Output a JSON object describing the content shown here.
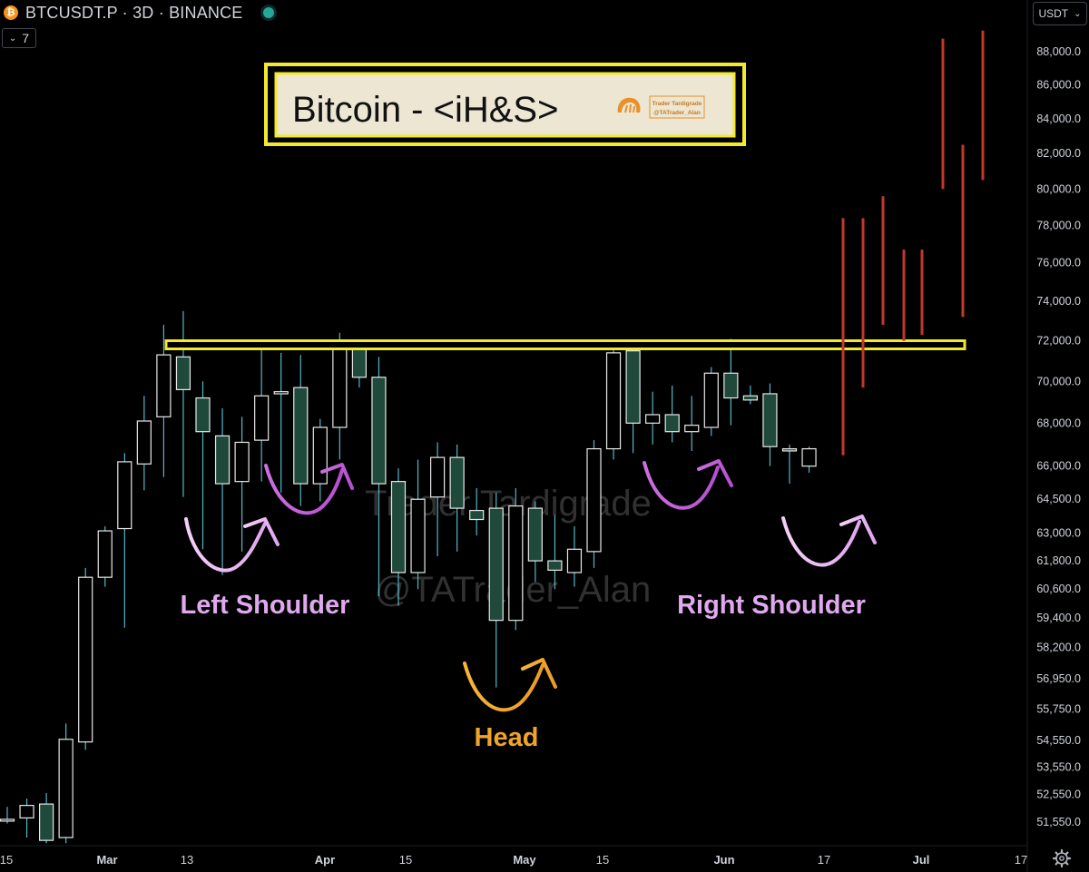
{
  "header": {
    "symbol": "BTCUSDT.P · 3D · BINANCE",
    "indicator_count": "7",
    "currency_button": "USDT"
  },
  "colors": {
    "background": "#000000",
    "bull_fill": "#000000",
    "bull_border": "#e8e8e8",
    "bear_fill": "#1f4a3b",
    "bear_border": "#e8e8e8",
    "wick": "#56b6c8",
    "neckline": "#f2ea2e",
    "projection": "#c0392b",
    "shoulder_label": "#e0a8ef",
    "shoulder_arrow_light": "#e6b3f2",
    "shoulder_arrow_dark": "#c057d6",
    "head": "#f0a52a",
    "title_box_bg": "#ece6d2",
    "title_box_border": "#f2ea2e"
  },
  "chart_data": {
    "type": "candlestick",
    "title": "Bitcoin - <iH&S>",
    "y_axis": {
      "scale": "log",
      "ticks": [
        88000,
        86000,
        84000,
        82000,
        80000,
        78000,
        76000,
        74000,
        72000,
        70000,
        68000,
        66000,
        64500,
        63000,
        61800,
        60600,
        59400,
        58200,
        56950,
        55750,
        54550,
        53550,
        52550,
        51550
      ],
      "tick_labels": [
        "88,000.0",
        "86,000.0",
        "84,000.0",
        "82,000.0",
        "80,000.0",
        "78,000.0",
        "76,000.0",
        "74,000.0",
        "72,000.0",
        "70,000.0",
        "68,000.0",
        "66,000.0",
        "64,500.0",
        "63,000.0",
        "61,800.0",
        "60,600.0",
        "59,400.0",
        "58,200.0",
        "56,950.0",
        "55,750.0",
        "54,550.0",
        "53,550.0",
        "52,550.0",
        "51,550.0"
      ]
    },
    "x_axis": {
      "labels": [
        "15",
        "Mar",
        "13",
        "Apr",
        "15",
        "May",
        "15",
        "Jun",
        "17",
        "Jul",
        "17"
      ],
      "bold": [
        false,
        true,
        false,
        true,
        false,
        true,
        false,
        true,
        false,
        true,
        false
      ]
    },
    "candles": [
      {
        "o": 51600,
        "h": 52100,
        "l": 51500,
        "c": 51650
      },
      {
        "o": 51700,
        "h": 52400,
        "l": 51000,
        "c": 52150
      },
      {
        "o": 52200,
        "h": 52600,
        "l": 50800,
        "c": 50900
      },
      {
        "o": 51000,
        "h": 55200,
        "l": 50800,
        "c": 54600
      },
      {
        "o": 54500,
        "h": 61500,
        "l": 54200,
        "c": 61100
      },
      {
        "o": 61100,
        "h": 63300,
        "l": 60700,
        "c": 63100
      },
      {
        "o": 63200,
        "h": 66600,
        "l": 59000,
        "c": 66200
      },
      {
        "o": 66100,
        "h": 69300,
        "l": 64900,
        "c": 68100
      },
      {
        "o": 68300,
        "h": 72800,
        "l": 65500,
        "c": 71300
      },
      {
        "o": 71200,
        "h": 73500,
        "l": 64600,
        "c": 69600
      },
      {
        "o": 69200,
        "h": 70000,
        "l": 62300,
        "c": 67600
      },
      {
        "o": 67400,
        "h": 68700,
        "l": 61200,
        "c": 65200
      },
      {
        "o": 65300,
        "h": 68300,
        "l": 62200,
        "c": 67100
      },
      {
        "o": 67200,
        "h": 71600,
        "l": 65300,
        "c": 69300
      },
      {
        "o": 69400,
        "h": 71400,
        "l": 64800,
        "c": 69500
      },
      {
        "o": 69700,
        "h": 71300,
        "l": 64200,
        "c": 65200
      },
      {
        "o": 65200,
        "h": 68200,
        "l": 64400,
        "c": 67800
      },
      {
        "o": 67800,
        "h": 72400,
        "l": 66300,
        "c": 71600
      },
      {
        "o": 71600,
        "h": 72000,
        "l": 69700,
        "c": 70200
      },
      {
        "o": 70200,
        "h": 71200,
        "l": 60300,
        "c": 65200
      },
      {
        "o": 65300,
        "h": 65900,
        "l": 59900,
        "c": 61300
      },
      {
        "o": 61300,
        "h": 66300,
        "l": 60600,
        "c": 64500
      },
      {
        "o": 64600,
        "h": 67100,
        "l": 62000,
        "c": 66400
      },
      {
        "o": 66400,
        "h": 67000,
        "l": 62200,
        "c": 64100
      },
      {
        "o": 64000,
        "h": 65000,
        "l": 62900,
        "c": 63600
      },
      {
        "o": 64100,
        "h": 64800,
        "l": 56600,
        "c": 59300
      },
      {
        "o": 59300,
        "h": 65000,
        "l": 58900,
        "c": 64200
      },
      {
        "o": 64100,
        "h": 64400,
        "l": 60900,
        "c": 61800
      },
      {
        "o": 61800,
        "h": 63800,
        "l": 60600,
        "c": 61400
      },
      {
        "o": 61300,
        "h": 63300,
        "l": 60700,
        "c": 62300
      },
      {
        "o": 62200,
        "h": 67200,
        "l": 61500,
        "c": 66800
      },
      {
        "o": 66800,
        "h": 71800,
        "l": 66300,
        "c": 71400
      },
      {
        "o": 71500,
        "h": 72000,
        "l": 66600,
        "c": 68000
      },
      {
        "o": 68000,
        "h": 69500,
        "l": 67000,
        "c": 68400
      },
      {
        "o": 68400,
        "h": 69800,
        "l": 67100,
        "c": 67600
      },
      {
        "o": 67600,
        "h": 69300,
        "l": 66700,
        "c": 67900
      },
      {
        "o": 67800,
        "h": 70700,
        "l": 67400,
        "c": 70400
      },
      {
        "o": 70400,
        "h": 72100,
        "l": 67900,
        "c": 69200
      },
      {
        "o": 69300,
        "h": 69800,
        "l": 68900,
        "c": 69100
      },
      {
        "o": 69400,
        "h": 69900,
        "l": 66000,
        "c": 66900
      },
      {
        "o": 66800,
        "h": 67000,
        "l": 65200,
        "c": 66700
      },
      {
        "o": 66000,
        "h": 66900,
        "l": 65700,
        "c": 66800
      }
    ],
    "neckline": {
      "price": 71800
    },
    "projection_bars": [
      {
        "low": 66500,
        "high": 78400
      },
      {
        "low": 69700,
        "high": 78400
      },
      {
        "low": 72800,
        "high": 79600
      },
      {
        "low": 72000,
        "high": 76700
      },
      {
        "low": 72300,
        "high": 76700
      },
      {
        "low": 80000,
        "high": 88800
      },
      {
        "low": 73200,
        "high": 82500
      },
      {
        "low": 80500,
        "high": 89300
      }
    ],
    "annotations": {
      "left_shoulder": "Left Shoulder",
      "head": "Head",
      "right_shoulder": "Right Shoulder"
    },
    "watermark": [
      "Trader Tardigrade",
      "@TATrader_Alan"
    ],
    "title_badge": [
      "Trader Tardigrade",
      "@TATrader_Alan"
    ]
  }
}
